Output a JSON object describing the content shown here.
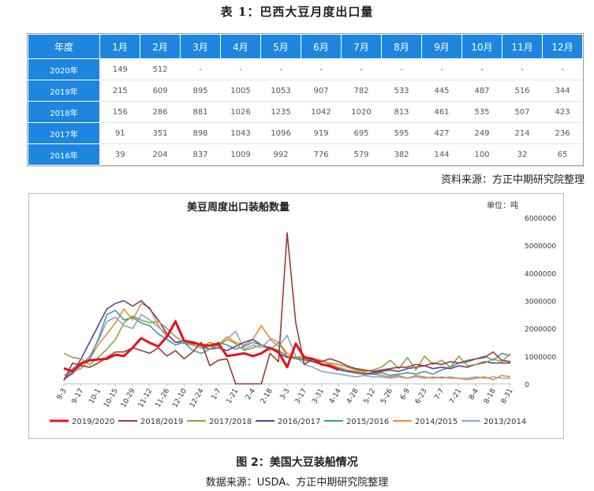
{
  "table": {
    "title": "表 1：巴西大豆月度出口量",
    "header": [
      "年度",
      "1月",
      "2月",
      "3月",
      "4月",
      "5月",
      "6月",
      "7月",
      "8月",
      "9月",
      "10月",
      "11月",
      "12月"
    ],
    "rows": [
      {
        "year": "2020年",
        "values": [
          "149",
          "512",
          "-",
          "-",
          "-",
          "-",
          "-",
          "-",
          "-",
          "-",
          "-",
          "-"
        ]
      },
      {
        "year": "2019年",
        "values": [
          "215",
          "609",
          "895",
          "1005",
          "1053",
          "907",
          "782",
          "533",
          "445",
          "487",
          "516",
          "344"
        ]
      },
      {
        "year": "2018年",
        "values": [
          "156",
          "286",
          "881",
          "1026",
          "1235",
          "1042",
          "1020",
          "813",
          "461",
          "535",
          "507",
          "423"
        ]
      },
      {
        "year": "2017年",
        "values": [
          "91",
          "351",
          "898",
          "1043",
          "1096",
          "919",
          "695",
          "595",
          "427",
          "249",
          "214",
          "236"
        ]
      },
      {
        "year": "2016年",
        "values": [
          "39",
          "204",
          "837",
          "1009",
          "992",
          "776",
          "579",
          "382",
          "144",
          "100",
          "32",
          "65"
        ]
      }
    ],
    "source": "资料来源：方正中期研究院整理"
  },
  "chart_data": {
    "type": "line",
    "title": "美豆周度出口装船数量",
    "unit_label": "单位：吨",
    "ylim": [
      0,
      6000000
    ],
    "y_ticks": [
      "0",
      "1000000",
      "2000000",
      "3000000",
      "4000000",
      "5000000",
      "6000000"
    ],
    "y_tick_values": [
      0,
      1000000,
      2000000,
      3000000,
      4000000,
      5000000,
      6000000
    ],
    "x_tick_labels": [
      "9-3",
      "9-17",
      "10-1",
      "10-15",
      "10-29",
      "11-12",
      "11-26",
      "12-10",
      "12-24",
      "1-7",
      "1-21",
      "2-4",
      "2-18",
      "3-3",
      "3-17",
      "3-31",
      "4-14",
      "4-28",
      "5-12",
      "5-26",
      "6-9",
      "6-23",
      "7-7",
      "7-21",
      "8-4",
      "8-18",
      "8-31"
    ],
    "n_points": 53,
    "series": [
      {
        "name": "2019/2020",
        "color": "#e8101a",
        "width": 3,
        "values": [
          560000,
          450000,
          740000,
          850000,
          880000,
          900000,
          1050000,
          1000000,
          1300000,
          1650000,
          1480000,
          1350000,
          1700000,
          2250000,
          1550000,
          1500000,
          1400000,
          1380000,
          1450000,
          1000000,
          1050000,
          1100000,
          1000000,
          1100000,
          1300000,
          1150000,
          600000,
          1450000,
          950000,
          900000,
          700000,
          650000,
          500000
        ]
      },
      {
        "name": "2018/2019",
        "color": "#9c3a33",
        "width": 1.6,
        "values": [
          120000,
          750000,
          650000,
          600000,
          750000,
          950000,
          1150000,
          1150000,
          1300000,
          1200000,
          1100000,
          1300000,
          1000000,
          1200000,
          900000,
          1150000,
          1500000,
          650000,
          850000,
          900000,
          0,
          0,
          0,
          0,
          1100000,
          800000,
          5450000,
          2200000,
          700000,
          900000,
          800000,
          900000,
          800000,
          650000,
          550000,
          500000,
          450000,
          500000,
          550000,
          600000,
          600000,
          700000,
          650000,
          750000,
          700000,
          800000,
          750000,
          800000,
          900000,
          950000,
          1150000,
          850000,
          800000
        ]
      },
      {
        "name": "2017/2018",
        "color": "#8ea63b",
        "width": 1.6,
        "values": [
          1100000,
          950000,
          900000,
          700000,
          950000,
          1250000,
          1600000,
          2200000,
          2450000,
          2300000,
          2200000,
          2250000,
          2000000,
          1700000,
          1500000,
          1400000,
          1300000,
          1250000,
          1400000,
          1600000,
          1450000,
          1200000,
          1300000,
          1400000,
          1200000,
          1500000,
          1000000,
          950000,
          900000,
          850000,
          800000,
          750000,
          700000,
          600000,
          500000,
          450000,
          500000,
          600000,
          850000,
          550000,
          950000,
          500000,
          1000000,
          700000,
          850000,
          600000,
          1000000,
          650000,
          700000,
          750000,
          900000,
          800000,
          1100000
        ]
      },
      {
        "name": "2016/2017",
        "color": "#6b3b8c",
        "width": 1.6,
        "values": [
          150000,
          400000,
          900000,
          1500000,
          2100000,
          2700000,
          2900000,
          3000000,
          2800000,
          3000000,
          2700000,
          2300000,
          1800000,
          1500000,
          1550000,
          1450000,
          1400000,
          1250000,
          1300000,
          1200000,
          1350000,
          1500000,
          1600000,
          1400000,
          1300000,
          1100000,
          950000,
          950000,
          900000,
          800000,
          700000,
          650000,
          550000,
          450000,
          400000,
          350000,
          400000,
          450000,
          500000,
          450000,
          550000,
          600000,
          650000,
          550000,
          600000,
          550000,
          650000,
          600000,
          700000,
          800000,
          750000,
          750000,
          750000
        ]
      },
      {
        "name": "2015/2016",
        "color": "#3a9bb0",
        "width": 1.6,
        "values": [
          150000,
          550000,
          700000,
          900000,
          1600000,
          2500000,
          2650000,
          2300000,
          2400000,
          2200000,
          2100000,
          1800000,
          1600000,
          1400000,
          1500000,
          1200000,
          1100000,
          1250000,
          1500000,
          1400000,
          1250000,
          1350000,
          1500000,
          1400000,
          1300000,
          1200000,
          1000000,
          900000,
          850000,
          800000,
          700000,
          600000,
          500000,
          450000,
          400000,
          350000,
          350000,
          400000,
          300000,
          350000,
          400000,
          350000,
          450000,
          350000,
          500000,
          600000,
          750000,
          850000,
          900000,
          1000000,
          850000,
          1100000,
          1000000
        ]
      },
      {
        "name": "2014/2015",
        "color": "#ec8b35",
        "width": 1.6,
        "values": [
          300000,
          450000,
          550000,
          900000,
          1400000,
          1800000,
          2200000,
          2700000,
          2300000,
          2900000,
          2750000,
          2100000,
          1700000,
          2300000,
          1500000,
          1400000,
          1300000,
          1500000,
          1400000,
          1700000,
          1500000,
          1400000,
          1600000,
          2100000,
          1650000,
          1500000,
          1100000,
          950000,
          1000000,
          900000,
          850000,
          700000,
          600000,
          500000,
          450000,
          400000,
          350000,
          300000,
          250000,
          300000,
          200000,
          300000,
          250000,
          200000,
          250000,
          200000,
          200000,
          150000,
          200000,
          250000,
          150000,
          300000,
          250000
        ]
      },
      {
        "name": "2013/2014",
        "color": "#86a6d6",
        "width": 1.6,
        "values": [
          200000,
          350000,
          650000,
          1000000,
          1550000,
          2250000,
          2400000,
          2100000,
          2000000,
          2500000,
          2300000,
          2050000,
          1800000,
          1500000,
          1450000,
          1400000,
          1300000,
          1500000,
          1350000,
          1600000,
          1900000,
          1250000,
          1400000,
          1300000,
          1600000,
          1350000,
          1750000,
          1000000,
          700000,
          600000,
          450000,
          400000,
          350000,
          300000,
          250000,
          300000,
          250000,
          250000,
          200000,
          250000,
          200000,
          250000,
          200000,
          250000,
          200000,
          250000,
          200000,
          200000,
          250000,
          200000,
          250000,
          200000,
          200000
        ]
      }
    ]
  },
  "figure": {
    "caption": "图 2：美国大豆装船情况",
    "source": "数据来源：USDA、方正中期研究院整理"
  }
}
